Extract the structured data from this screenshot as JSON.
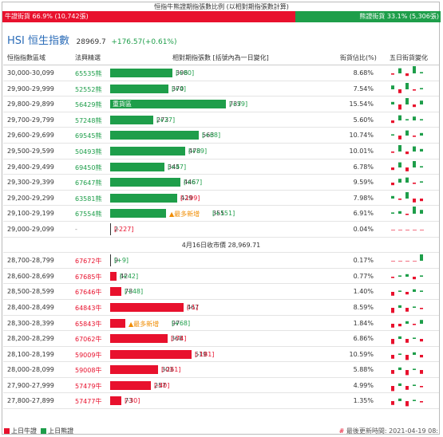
{
  "title": "恒指牛熊證期指張數比例 (以相對期指張數計算)",
  "ratio": {
    "bull_label": "牛證街貨 66.9% (10,742張)",
    "bear_label": "熊證街貨 33.1% (5,306張)",
    "bull_pct": 66.9,
    "colors": {
      "bull": "#e8112d",
      "bear": "#1e9e4a"
    }
  },
  "index": {
    "name": "HSI 恒生指數",
    "price": "28969.7",
    "change": "+176.57(+0.61%)"
  },
  "headers": {
    "range": "恒指指數區域",
    "code": "法興精選",
    "bar": "相對期指張數 [括號內為一日變化]",
    "pct": "街貨佔比(%)",
    "spark": "五日街貨變化"
  },
  "max_contracts": 737,
  "bear_rows": [
    {
      "range": "30,000-30,099",
      "code": "65535熊",
      "contracts": 396,
      "change": "[+80]",
      "pct": "8.68%",
      "flag": "",
      "spark": [
        -1,
        4,
        -2,
        6,
        1
      ]
    },
    {
      "range": "29,900-29,999",
      "code": "52552熊",
      "contracts": 370,
      "change": "[+4]",
      "pct": "7.54%",
      "flag": "",
      "spark": [
        3,
        -3,
        5,
        -1,
        1
      ]
    },
    {
      "range": "29,800-29,899",
      "code": "56429熊",
      "contracts": 737,
      "change": "[+59]",
      "pct": "15.54%",
      "flag": "重貨區",
      "spark": [
        2,
        -4,
        5,
        -2,
        3
      ]
    },
    {
      "range": "29,700-29,799",
      "code": "57248熊",
      "contracts": 273,
      "change": "[+27]",
      "pct": "5.60%",
      "flag": "",
      "spark": [
        -2,
        4,
        1,
        3,
        1
      ]
    },
    {
      "range": "29,600-29,699",
      "code": "69545熊",
      "contracts": 563,
      "change": "[+68]",
      "pct": "10.74%",
      "flag": "",
      "spark": [
        1,
        -3,
        4,
        -1,
        2
      ]
    },
    {
      "range": "29,500-29,599",
      "code": "50493熊",
      "contracts": 478,
      "change": "[+89]",
      "pct": "10.01%",
      "flag": "",
      "spark": [
        -1,
        5,
        -2,
        4,
        2
      ]
    },
    {
      "range": "29,400-29,499",
      "code": "69450熊",
      "contracts": 345,
      "change": "[+47]",
      "pct": "6.78%",
      "flag": "",
      "spark": [
        -2,
        4,
        -3,
        5,
        1
      ]
    },
    {
      "range": "29,300-29,399",
      "code": "67647熊",
      "contracts": 446,
      "change": "[+67]",
      "pct": "9.59%",
      "flag": "",
      "spark": [
        -2,
        3,
        4,
        -1,
        1
      ]
    },
    {
      "range": "29,200-29,299",
      "code": "63581熊",
      "contracts": 429,
      "change": "[-199]",
      "pct": "7.98%",
      "flag": "",
      "spark": [
        2,
        -1,
        5,
        -3,
        -2
      ]
    },
    {
      "range": "29,100-29,199",
      "code": "67554熊",
      "contracts": 355,
      "change": "[+151]",
      "pct": "6.91%",
      "flag": "▲最多新增",
      "spark": [
        1,
        2,
        -1,
        6,
        3
      ]
    },
    {
      "range": "29,000-29,099",
      "code": "-",
      "contracts": 2,
      "change": "[-227]",
      "pct": "0.04%",
      "flag": "",
      "spark": [
        0,
        0,
        0,
        0,
        0
      ]
    }
  ],
  "close_label": "4月16日收市價 28,969.71",
  "bull_rows": [
    {
      "range": "28,700-28,799",
      "code": "67672牛",
      "contracts": 9,
      "change": "[+9]",
      "pct": "0.17%",
      "flag": "",
      "spark": [
        0,
        0,
        0,
        0,
        5
      ]
    },
    {
      "range": "28,600-28,699",
      "code": "67685牛",
      "contracts": 42,
      "change": "[+42]",
      "pct": "0.77%",
      "flag": "",
      "spark": [
        -1,
        1,
        2,
        -2,
        1
      ]
    },
    {
      "range": "28,500-28,599",
      "code": "67646牛",
      "contracts": 73,
      "change": "[+48]",
      "pct": "1.40%",
      "flag": "",
      "spark": [
        -3,
        1,
        -2,
        2,
        1
      ]
    },
    {
      "range": "28,400-28,499",
      "code": "64843牛",
      "contracts": 467,
      "change": "[-1]",
      "pct": "8.59%",
      "flag": "",
      "spark": [
        -4,
        2,
        -3,
        1,
        -1
      ]
    },
    {
      "range": "28,300-28,399",
      "code": "65843牛",
      "contracts": 97,
      "change": "[+68]",
      "pct": "1.84%",
      "flag": "▲最多新增",
      "spark": [
        -3,
        -2,
        2,
        -1,
        3
      ]
    },
    {
      "range": "28,200-28,299",
      "code": "67062牛",
      "contracts": 368,
      "change": "[-74]",
      "pct": "6.86%",
      "flag": "",
      "spark": [
        -4,
        2,
        -3,
        1,
        -2
      ]
    },
    {
      "range": "28,100-28,199",
      "code": "59009牛",
      "contracts": 519,
      "change": "[-181]",
      "pct": "10.59%",
      "flag": "",
      "spark": [
        -3,
        1,
        -4,
        2,
        -2
      ]
    },
    {
      "range": "28,000-28,099",
      "code": "59008牛",
      "contracts": 303,
      "change": "[-261]",
      "pct": "5.88%",
      "flag": "",
      "spark": [
        -3,
        2,
        -4,
        1,
        -3
      ]
    },
    {
      "range": "27,900-27,999",
      "code": "57479牛",
      "contracts": 257,
      "change": "[-40]",
      "pct": "4.99%",
      "flag": "",
      "spark": [
        -4,
        2,
        -3,
        1,
        -1
      ]
    },
    {
      "range": "27,800-27,899",
      "code": "57477牛",
      "contracts": 73,
      "change": "[-30]",
      "pct": "1.35%",
      "flag": "",
      "spark": [
        -3,
        2,
        -4,
        1,
        -1
      ]
    }
  ],
  "legend": {
    "bull": "上日牛證",
    "bear": "上日熊證"
  },
  "update": {
    "prefix": "#",
    "text": "最後更新時間: 2021-04-19 08:"
  }
}
